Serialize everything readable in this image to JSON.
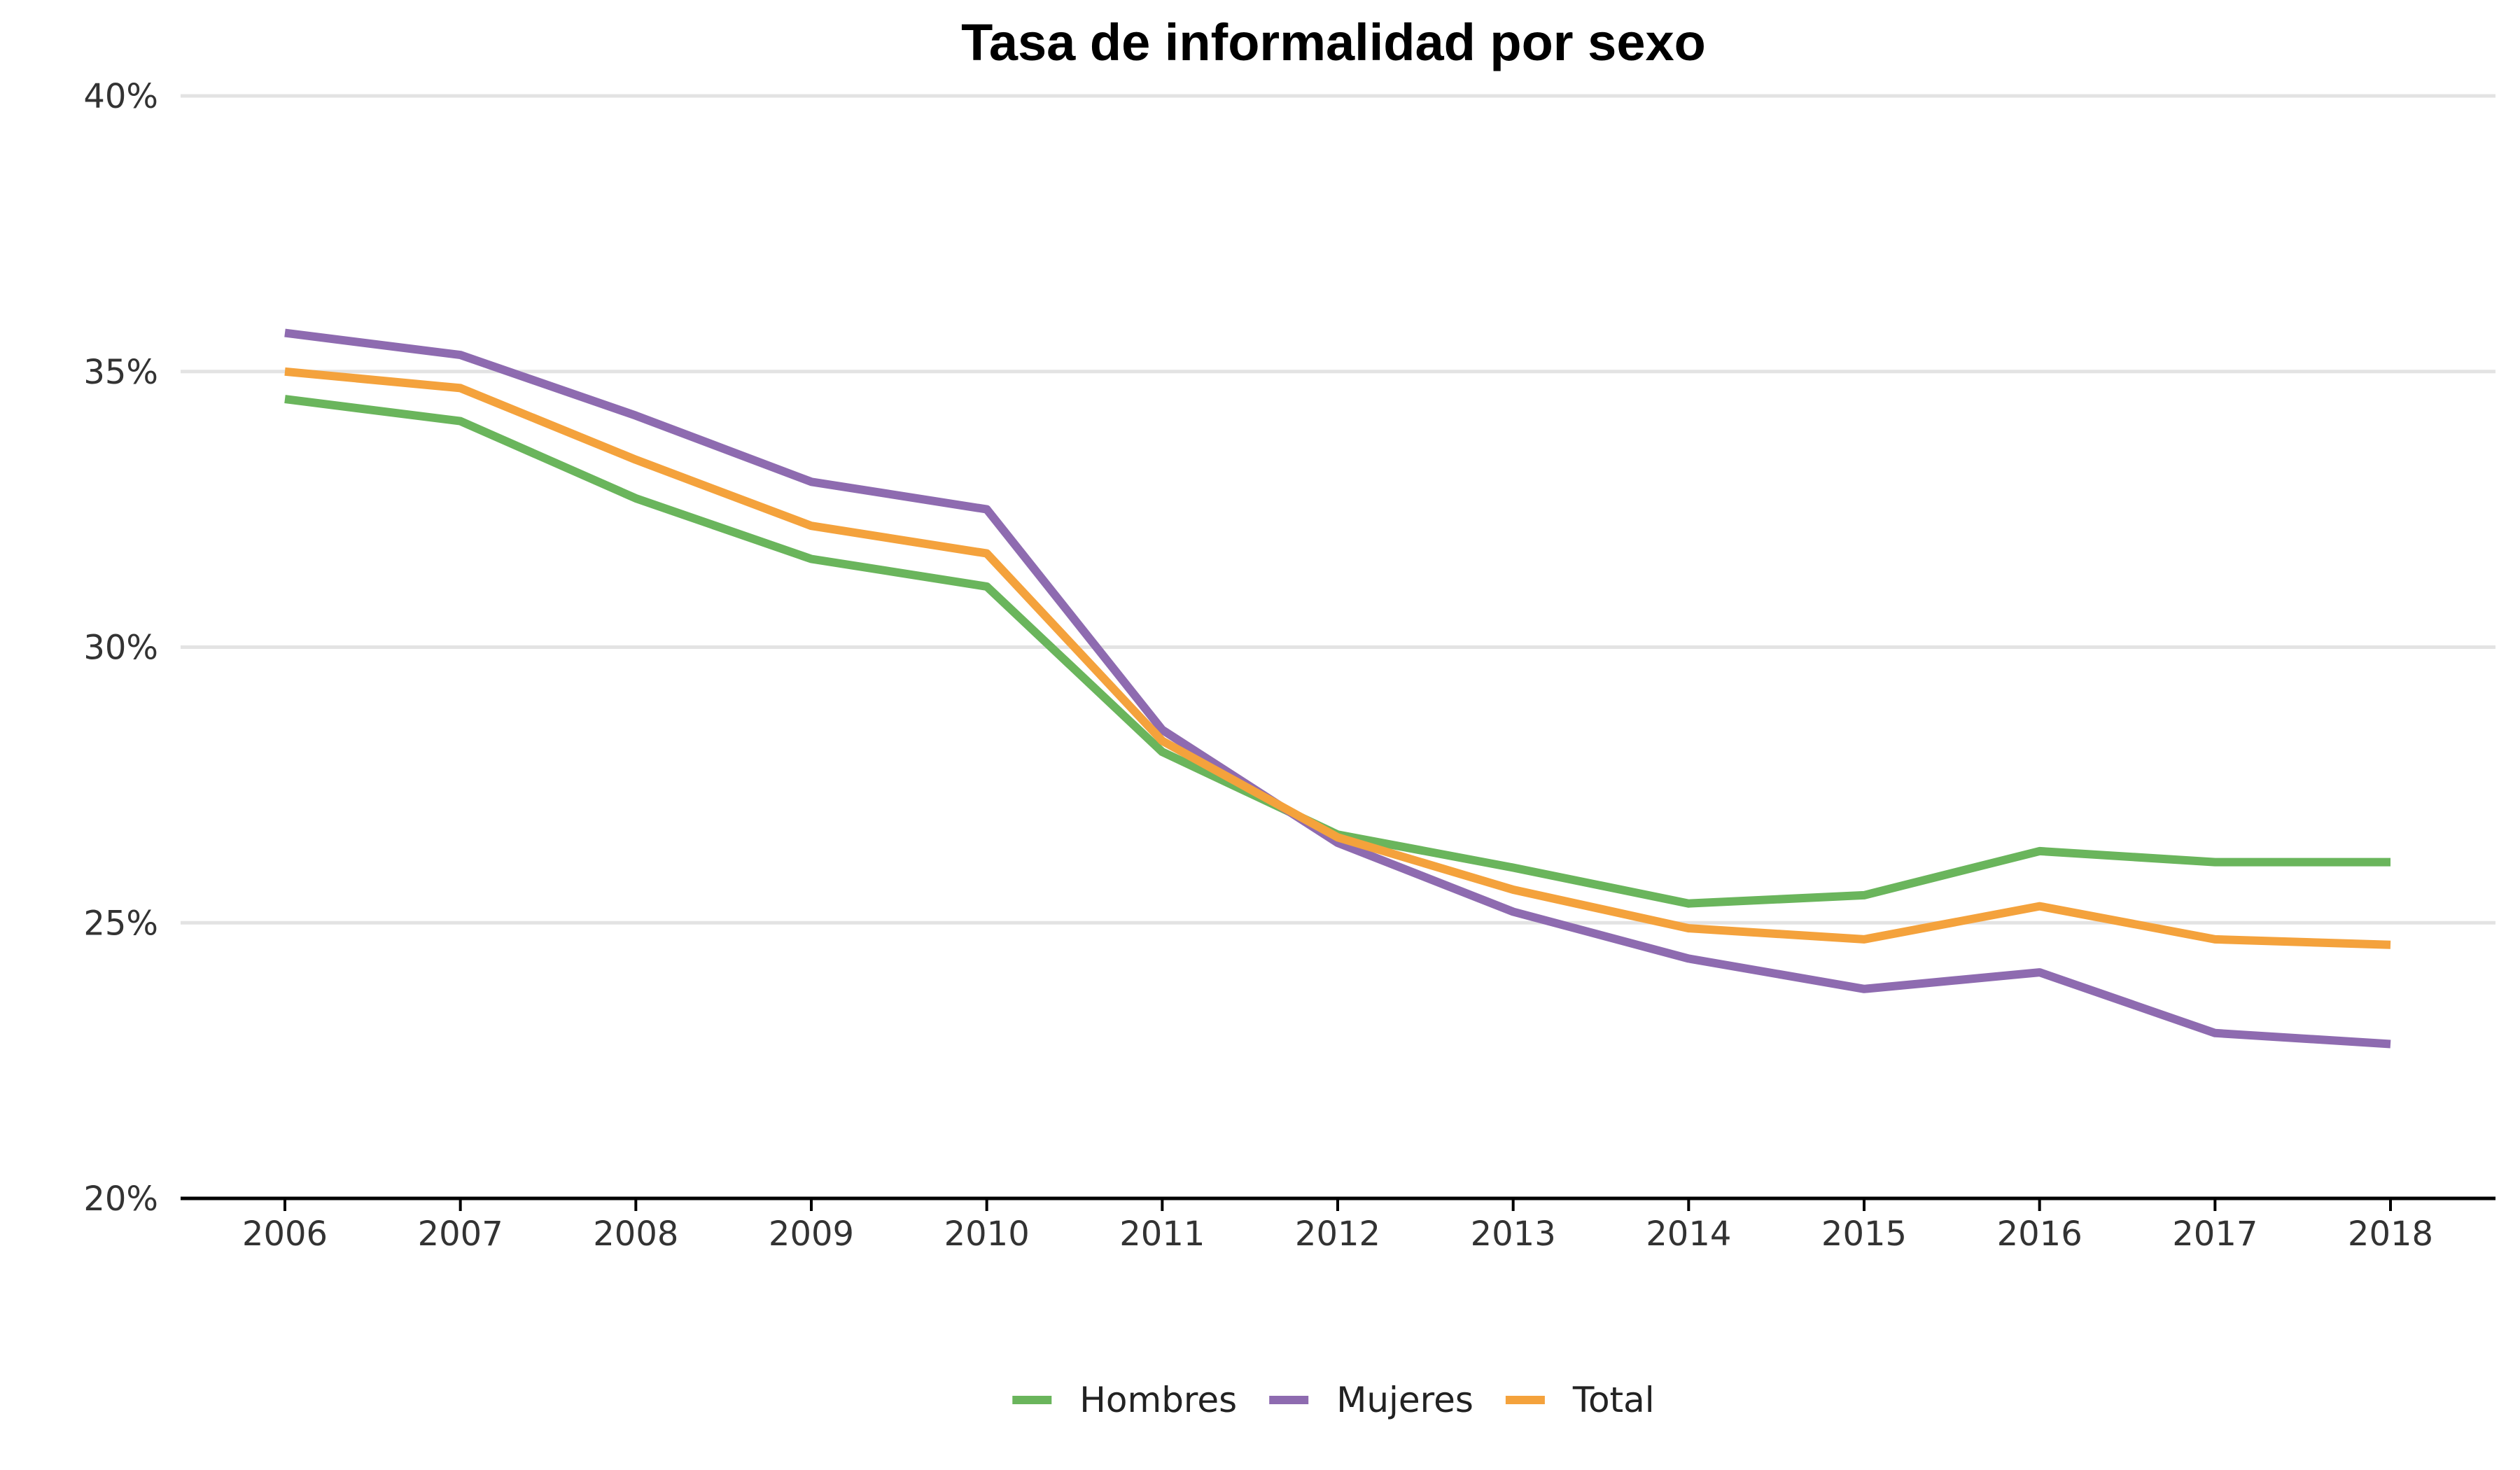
{
  "chart_data": {
    "type": "line",
    "title": "Tasa de informalidad por sexo",
    "xlabel": "",
    "ylabel": "",
    "x": [
      "2006",
      "2007",
      "2008",
      "2009",
      "2010",
      "2011",
      "2012",
      "2013",
      "2014",
      "2015",
      "2016",
      "2017",
      "2018"
    ],
    "ylim": [
      20,
      40
    ],
    "yticks": [
      20,
      25,
      30,
      35,
      40
    ],
    "ytick_suffix": "%",
    "grid": true,
    "legend_position": "bottom",
    "series": [
      {
        "name": "Hombres",
        "color": "#6ab55c",
        "values": [
          34.5,
          34.1,
          32.7,
          31.6,
          31.1,
          28.1,
          26.6,
          26.0,
          25.35,
          25.5,
          26.3,
          26.1,
          26.1
        ]
      },
      {
        "name": "Mujeres",
        "color": "#8e6bb0",
        "values": [
          35.7,
          35.3,
          34.2,
          33.0,
          32.5,
          28.5,
          26.45,
          25.2,
          24.35,
          23.8,
          24.1,
          23.0,
          22.8
        ]
      },
      {
        "name": "Total",
        "color": "#f4a23c",
        "values": [
          35.0,
          34.7,
          33.4,
          32.2,
          31.7,
          28.3,
          26.55,
          25.6,
          24.9,
          24.7,
          25.3,
          24.7,
          24.6
        ]
      }
    ]
  }
}
